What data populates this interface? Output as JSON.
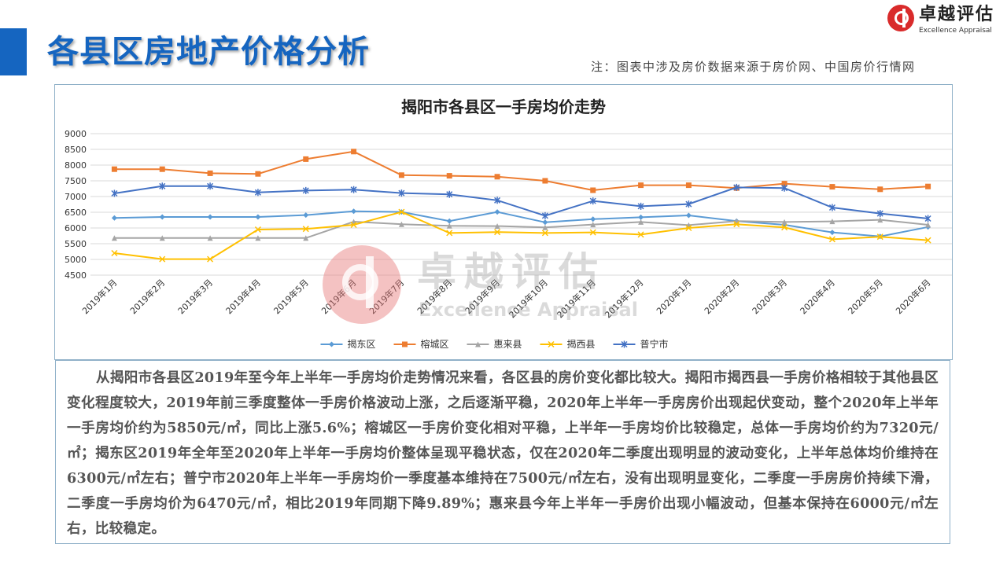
{
  "header": {
    "title": "各县区房地产价格分析",
    "note": "注：图表中涉及房价数据来源于房价网、中国房价行情网"
  },
  "logo": {
    "name": "卓越评估",
    "subtitle": "Excellence Appraisal"
  },
  "watermark": {
    "name": "卓越评估",
    "subtitle": "Excellence Appraisal"
  },
  "chart_data": {
    "type": "line",
    "title": "揭阳市各县区一手房均价走势",
    "categories": [
      "2019年1月",
      "2019年2月",
      "2019年3月",
      "2019年4月",
      "2019年5月",
      "2019年6月",
      "2019年7月",
      "2019年8月",
      "2019年9月",
      "2019年10月",
      "2019年11月",
      "2019年12月",
      "2020年1月",
      "2020年2月",
      "2020年3月",
      "2020年4月",
      "2020年5月",
      "2020年6月"
    ],
    "yticks": [
      "9000",
      "8500",
      "8000",
      "7500",
      "7000",
      "6500",
      "6000",
      "5500",
      "5000",
      "4500"
    ],
    "ylim": [
      4500,
      9000
    ],
    "grid": true,
    "legend_position": "bottom",
    "series": [
      {
        "name": "揭东区",
        "color": "#5b9bd5",
        "marker": "diamond",
        "values": [
          6320,
          6350,
          6350,
          6350,
          6410,
          6530,
          6510,
          6220,
          6510,
          6180,
          6280,
          6340,
          6400,
          6220,
          6100,
          5860,
          5730,
          6030
        ]
      },
      {
        "name": "榕城区",
        "color": "#ed7d31",
        "marker": "square",
        "values": [
          7870,
          7870,
          7740,
          7720,
          8190,
          8430,
          7680,
          7660,
          7630,
          7500,
          7200,
          7360,
          7360,
          7270,
          7410,
          7310,
          7230,
          7320
        ]
      },
      {
        "name": "惠来县",
        "color": "#a5a5a5",
        "marker": "triangle",
        "values": [
          5680,
          5680,
          5680,
          5680,
          5680,
          6200,
          6120,
          6070,
          6060,
          6020,
          6110,
          6190,
          6090,
          6220,
          6190,
          6210,
          6260,
          6100
        ]
      },
      {
        "name": "揭西县",
        "color": "#ffc000",
        "marker": "x",
        "values": [
          5200,
          5010,
          5010,
          5950,
          5970,
          6100,
          6510,
          5840,
          5870,
          5840,
          5860,
          5790,
          6000,
          6120,
          6020,
          5640,
          5720,
          5610
        ]
      },
      {
        "name": "普宁市",
        "color": "#4472c4",
        "marker": "star",
        "values": [
          7100,
          7330,
          7330,
          7130,
          7190,
          7220,
          7110,
          7070,
          6880,
          6390,
          6860,
          6690,
          6760,
          7290,
          7270,
          6650,
          6460,
          6300
        ]
      }
    ]
  },
  "analysis": {
    "text": "从揭阳市各县区2019年至今年上半年一手房均价走势情况来看，各区县的房价变化都比较大。揭阳市揭西县一手房价格相较于其他县区变化程度较大，2019年前三季度整体一手房价格波动上涨，之后逐渐平稳，2020年上半年一手房房价出现起伏变动，整个2020年上半年一手房均价约为5850元/㎡，同比上涨5.6%；榕城区一手房价变化相对平稳，上半年一手房均价比较稳定，总体一手房均价约为7320元/㎡；揭东区2019年全年至2020年上半年一手房均价整体呈现平稳状态，仅在2020年二季度出现明显的波动变化，上半年总体均价维持在6300元/㎡左右；普宁市2020年上半年一手房均价一季度基本维持在7500元/㎡左右，没有出现明显变化，二季度一手房房价持续下滑，二季度一手房均价为6470元/㎡，相比2019年同期下降9.89%；惠来县今年上半年一手房价出现小幅波动，但基本保持在6000元/㎡左右，比较稳定。"
  }
}
